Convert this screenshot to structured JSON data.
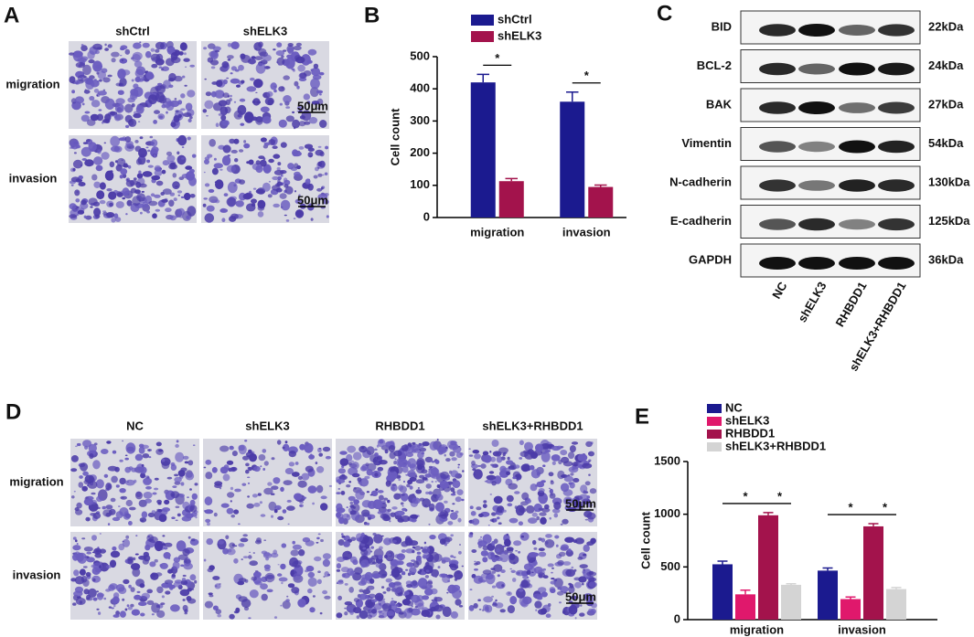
{
  "panel_labels": [
    "A",
    "B",
    "C",
    "D",
    "E"
  ],
  "panel_a": {
    "columns": [
      "shCtrl",
      "shELK3"
    ],
    "rows": [
      "migration",
      "invasion"
    ],
    "scale_bar": "50μm"
  },
  "panel_c": {
    "proteins": [
      {
        "name": "BID",
        "size": "22kDa"
      },
      {
        "name": "BCL-2",
        "size": "24kDa"
      },
      {
        "name": "BAK",
        "size": "27kDa"
      },
      {
        "name": "Vimentin",
        "size": "54kDa"
      },
      {
        "name": "N-cadherin",
        "size": "130kDa"
      },
      {
        "name": "E-cadherin",
        "size": "125kDa"
      },
      {
        "name": "GAPDH",
        "size": "36kDa"
      }
    ],
    "lanes": [
      "NC",
      "shELK3",
      "RHBDD1",
      "shELK3+RHBDD1"
    ]
  },
  "panel_d": {
    "columns": [
      "NC",
      "shELK3",
      "RHBDD1",
      "shELK3+RHBDD1"
    ],
    "rows": [
      "migration",
      "invasion"
    ],
    "scale_bar": "50μm"
  },
  "chart_data": [
    {
      "type": "bar",
      "ylabel": "Cell count",
      "categories": [
        "migration",
        "invasion"
      ],
      "series": [
        {
          "name": "shCtrl",
          "color": "#1b1a8f",
          "values": [
            420,
            360
          ],
          "errors": [
            25,
            30
          ]
        },
        {
          "name": "shELK3",
          "color": "#a3134c",
          "values": [
            113,
            95
          ],
          "errors": [
            8,
            6
          ]
        }
      ],
      "ylim": [
        0,
        500
      ],
      "yticks": [
        0,
        100,
        200,
        300,
        400,
        500
      ],
      "annotations": [
        "*",
        "*"
      ]
    },
    {
      "type": "bar",
      "ylabel": "Cell count",
      "categories": [
        "migration",
        "invasion"
      ],
      "series": [
        {
          "name": "NC",
          "color": "#1b1a8f",
          "values": [
            525,
            465
          ],
          "errors": [
            30,
            25
          ]
        },
        {
          "name": "shELK3",
          "color": "#e0186c",
          "values": [
            240,
            195
          ],
          "errors": [
            40,
            20
          ]
        },
        {
          "name": "RHBDD1",
          "color": "#a3134c",
          "values": [
            990,
            885
          ],
          "errors": [
            25,
            25
          ]
        },
        {
          "name": "shELK3+RHBDD1",
          "color": "#d4d4d4",
          "values": [
            330,
            290
          ],
          "errors": [
            10,
            15
          ]
        }
      ],
      "ylim": [
        0,
        1500
      ],
      "yticks": [
        0,
        500,
        1000,
        1500
      ],
      "annotations": [
        "*",
        "*",
        "*",
        "*"
      ]
    }
  ]
}
